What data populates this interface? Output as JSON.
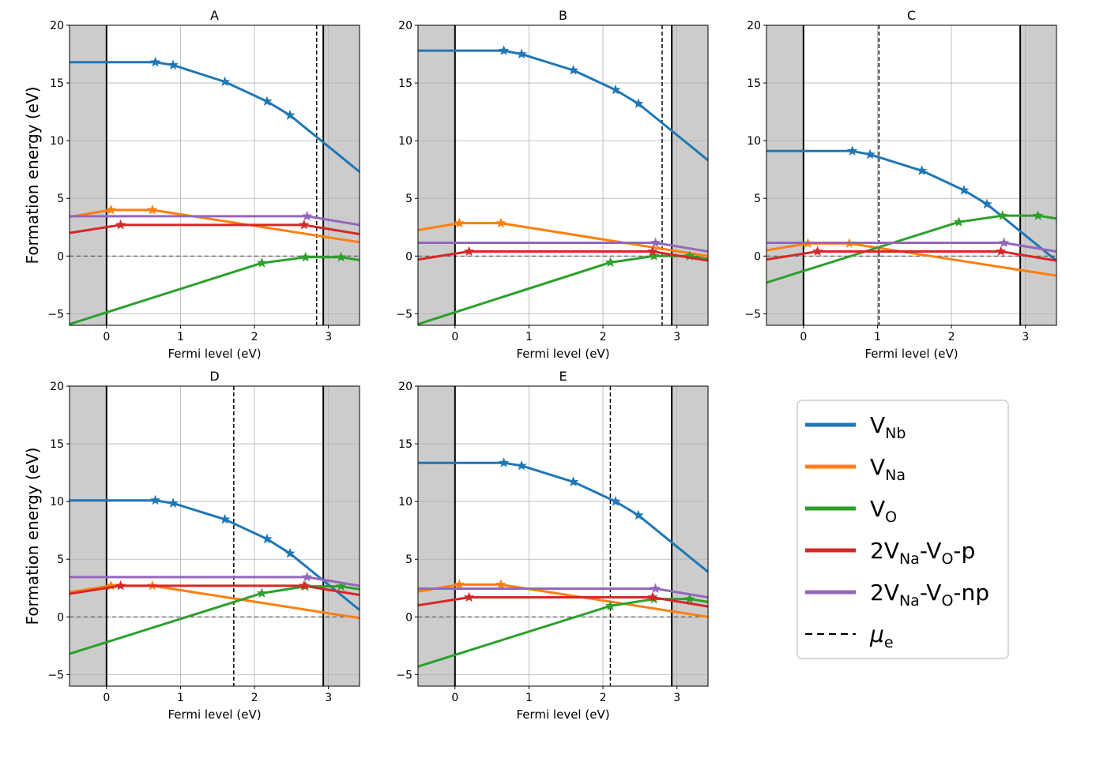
{
  "chart_data": {
    "type": "line",
    "xlabel": "Fermi level (eV)",
    "ylabel": "Formation energy (eV)",
    "xlim": [
      -0.5,
      3.42
    ],
    "ylim": [
      -6,
      20
    ],
    "xticks": [
      0,
      1,
      2,
      3
    ],
    "yticks": [
      -5,
      0,
      5,
      10,
      15,
      20
    ],
    "grid": true,
    "shaded_region": "outside band gap (x < 0 and x > 2.93)",
    "band_edges": [
      0,
      2.93
    ],
    "legend": {
      "placement": "lower-right",
      "entries": [
        {
          "key": "VNb",
          "main": "V",
          "sub": "Nb",
          "color": "#1f77b4",
          "style": "solid"
        },
        {
          "key": "VNa",
          "main": "V",
          "sub": "Na",
          "color": "#ff7f0e",
          "style": "solid"
        },
        {
          "key": "VO",
          "main": "V",
          "sub": "O",
          "color": "#2ca02c",
          "style": "solid"
        },
        {
          "key": "2VNa-VO-p",
          "parts": [
            [
              "2V",
              "Na"
            ],
            [
              "-V",
              "O"
            ],
            [
              "-p",
              ""
            ]
          ],
          "color": "#d62728",
          "style": "solid"
        },
        {
          "key": "2VNa-VO-np",
          "parts": [
            [
              "2V",
              "Na"
            ],
            [
              "-V",
              "O"
            ],
            [
              "-np",
              ""
            ]
          ],
          "color": "#9467bd",
          "style": "solid"
        },
        {
          "key": "mu_e",
          "main": "μ",
          "sub": "e",
          "italic": true,
          "color": "#000000",
          "style": "dashed"
        }
      ]
    },
    "panels": [
      {
        "title": "A",
        "mu_e": 2.84,
        "series": [
          {
            "key": "VNb",
            "x": [
              -0.5,
              0.66,
              0.9,
              1.6,
              2.17,
              2.48,
              3.42
            ],
            "y": [
              16.8,
              16.8,
              16.55,
              15.1,
              13.4,
              12.2,
              7.3
            ],
            "stars": [
              0.66,
              0.9,
              1.6,
              2.17,
              2.48
            ]
          },
          {
            "key": "VNa",
            "x": [
              -0.5,
              0.06,
              0.62,
              3.42
            ],
            "y": [
              3.4,
              4.0,
              4.0,
              1.2
            ],
            "stars": [
              0.06,
              0.62
            ]
          },
          {
            "key": "VO",
            "x": [
              -0.5,
              2.1,
              2.69,
              3.17,
              3.42
            ],
            "y": [
              -5.9,
              -0.6,
              -0.1,
              -0.1,
              -0.35
            ],
            "stars": [
              2.1,
              2.69,
              3.17
            ]
          },
          {
            "key": "2VNa-VO-p",
            "x": [
              -0.5,
              0.19,
              2.67,
              3.42
            ],
            "y": [
              2.0,
              2.7,
              2.7,
              1.9
            ],
            "stars": [
              0.19,
              2.67
            ]
          },
          {
            "key": "2VNa-VO-np",
            "x": [
              -0.5,
              2.71,
              3.42
            ],
            "y": [
              3.45,
              3.45,
              2.7
            ],
            "stars": [
              2.71
            ]
          }
        ]
      },
      {
        "title": "B",
        "mu_e": 2.8,
        "series": [
          {
            "key": "VNb",
            "x": [
              -0.5,
              0.66,
              0.9,
              1.6,
              2.17,
              2.48,
              3.42
            ],
            "y": [
              17.8,
              17.8,
              17.5,
              16.1,
              14.4,
              13.2,
              8.3
            ],
            "stars": [
              0.66,
              0.9,
              1.6,
              2.17,
              2.48
            ]
          },
          {
            "key": "VNa",
            "x": [
              -0.5,
              0.06,
              0.62,
              3.42
            ],
            "y": [
              2.25,
              2.85,
              2.85,
              0.0
            ],
            "stars": [
              0.06,
              0.62
            ]
          },
          {
            "key": "VO",
            "x": [
              -0.5,
              2.1,
              2.69,
              3.17,
              3.42
            ],
            "y": [
              -5.9,
              -0.55,
              0.0,
              0.0,
              -0.25
            ],
            "stars": [
              2.1,
              2.69,
              3.17
            ]
          },
          {
            "key": "2VNa-VO-p",
            "x": [
              -0.5,
              0.19,
              2.67,
              3.42
            ],
            "y": [
              -0.3,
              0.4,
              0.4,
              -0.4
            ],
            "stars": [
              0.19,
              2.67
            ]
          },
          {
            "key": "2VNa-VO-np",
            "x": [
              -0.5,
              2.71,
              3.42
            ],
            "y": [
              1.15,
              1.15,
              0.4
            ],
            "stars": [
              2.71
            ]
          }
        ]
      },
      {
        "title": "C",
        "mu_e": 1.02,
        "series": [
          {
            "key": "VNb",
            "x": [
              -0.5,
              0.66,
              0.9,
              1.6,
              2.17,
              2.48,
              3.42
            ],
            "y": [
              9.1,
              9.1,
              8.8,
              7.4,
              5.7,
              4.5,
              -0.4
            ],
            "stars": [
              0.66,
              0.9,
              1.6,
              2.17,
              2.48
            ]
          },
          {
            "key": "VNa",
            "x": [
              -0.5,
              0.06,
              0.62,
              3.42
            ],
            "y": [
              0.5,
              1.1,
              1.1,
              -1.7
            ],
            "stars": [
              0.06,
              0.62
            ]
          },
          {
            "key": "VO",
            "x": [
              -0.5,
              2.1,
              2.69,
              3.17,
              3.42
            ],
            "y": [
              -2.3,
              2.95,
              3.5,
              3.5,
              3.25
            ],
            "stars": [
              2.1,
              2.69,
              3.17
            ]
          },
          {
            "key": "2VNa-VO-p",
            "x": [
              -0.5,
              0.19,
              2.67,
              3.42
            ],
            "y": [
              -0.3,
              0.4,
              0.4,
              -0.4
            ],
            "stars": [
              0.19,
              2.67
            ]
          },
          {
            "key": "2VNa-VO-np",
            "x": [
              -0.5,
              2.71,
              3.42
            ],
            "y": [
              1.15,
              1.15,
              0.4
            ],
            "stars": [
              2.71
            ]
          }
        ]
      },
      {
        "title": "D",
        "mu_e": 1.72,
        "series": [
          {
            "key": "VNb",
            "x": [
              -0.5,
              0.66,
              0.9,
              1.6,
              2.17,
              2.48,
              3.42
            ],
            "y": [
              10.1,
              10.1,
              9.85,
              8.45,
              6.75,
              5.5,
              0.6
            ],
            "stars": [
              0.66,
              0.9,
              1.6,
              2.17,
              2.48
            ]
          },
          {
            "key": "VNa",
            "x": [
              -0.5,
              0.06,
              0.62,
              3.42
            ],
            "y": [
              2.15,
              2.7,
              2.7,
              -0.1
            ],
            "stars": [
              0.06,
              0.62
            ]
          },
          {
            "key": "VO",
            "x": [
              -0.5,
              2.1,
              2.69,
              3.17,
              3.42
            ],
            "y": [
              -3.2,
              2.05,
              2.65,
              2.65,
              2.4
            ],
            "stars": [
              2.1,
              2.69,
              3.17
            ]
          },
          {
            "key": "2VNa-VO-p",
            "x": [
              -0.5,
              0.19,
              2.67,
              3.42
            ],
            "y": [
              2.0,
              2.7,
              2.7,
              1.9
            ],
            "stars": [
              0.19,
              2.67
            ]
          },
          {
            "key": "2VNa-VO-np",
            "x": [
              -0.5,
              2.71,
              3.42
            ],
            "y": [
              3.45,
              3.45,
              2.7
            ],
            "stars": [
              2.71
            ]
          }
        ]
      },
      {
        "title": "E",
        "mu_e": 2.1,
        "series": [
          {
            "key": "VNb",
            "x": [
              -0.5,
              0.66,
              0.9,
              1.6,
              2.17,
              2.48,
              3.42
            ],
            "y": [
              13.35,
              13.35,
              13.1,
              11.7,
              10.0,
              8.8,
              3.9
            ],
            "stars": [
              0.66,
              0.9,
              1.6,
              2.17,
              2.48
            ]
          },
          {
            "key": "VNa",
            "x": [
              -0.5,
              0.06,
              0.62,
              3.42
            ],
            "y": [
              2.2,
              2.8,
              2.8,
              0.0
            ],
            "stars": [
              0.06,
              0.62
            ]
          },
          {
            "key": "VO",
            "x": [
              -0.5,
              2.1,
              2.69,
              3.17,
              3.42
            ],
            "y": [
              -4.3,
              0.95,
              1.55,
              1.55,
              1.3
            ],
            "stars": [
              2.1,
              2.69,
              3.17
            ]
          },
          {
            "key": "2VNa-VO-p",
            "x": [
              -0.5,
              0.19,
              2.67,
              3.42
            ],
            "y": [
              1.0,
              1.7,
              1.7,
              0.9
            ],
            "stars": [
              0.19,
              2.67
            ]
          },
          {
            "key": "2VNa-VO-np",
            "x": [
              -0.5,
              2.71,
              3.42
            ],
            "y": [
              2.45,
              2.45,
              1.7
            ],
            "stars": [
              2.71
            ]
          }
        ]
      }
    ]
  }
}
